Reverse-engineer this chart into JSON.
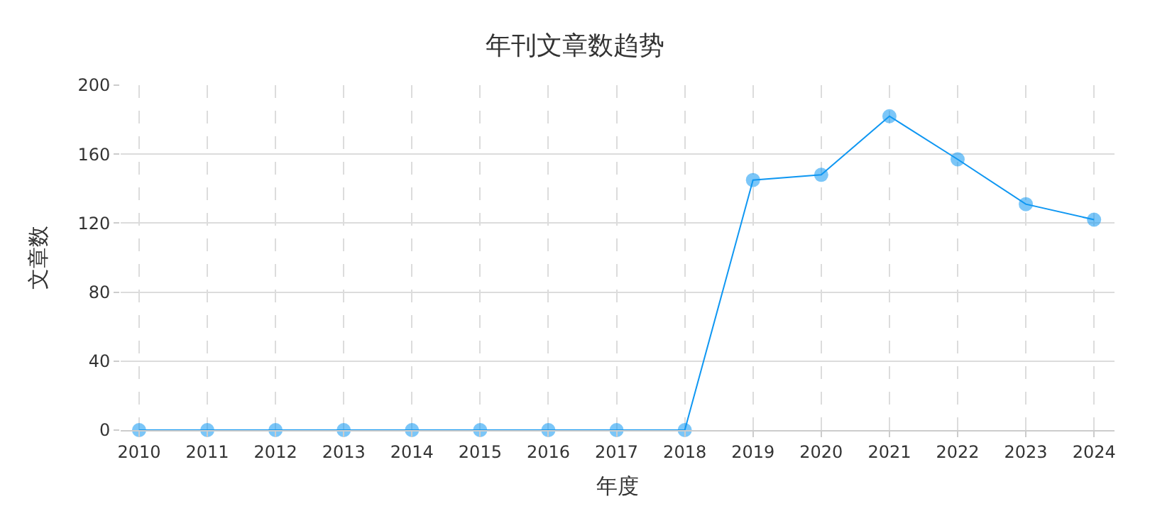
{
  "chart_data": {
    "type": "line",
    "title": "年刊文章数趋势",
    "xlabel": "年度",
    "ylabel": "文章数",
    "categories": [
      "2010",
      "2011",
      "2012",
      "2013",
      "2014",
      "2015",
      "2016",
      "2017",
      "2018",
      "2019",
      "2020",
      "2021",
      "2022",
      "2023",
      "2024"
    ],
    "series": [
      {
        "color": "#0f97f2",
        "values": [
          0,
          0,
          0,
          0,
          0,
          0,
          0,
          0,
          0,
          145,
          148,
          182,
          157,
          131,
          122
        ]
      }
    ],
    "ylim": [
      0,
      200
    ],
    "yticks": [
      0,
      40,
      80,
      120,
      160,
      200
    ],
    "grid": true,
    "marker": "circle",
    "line_style": "solid"
  }
}
